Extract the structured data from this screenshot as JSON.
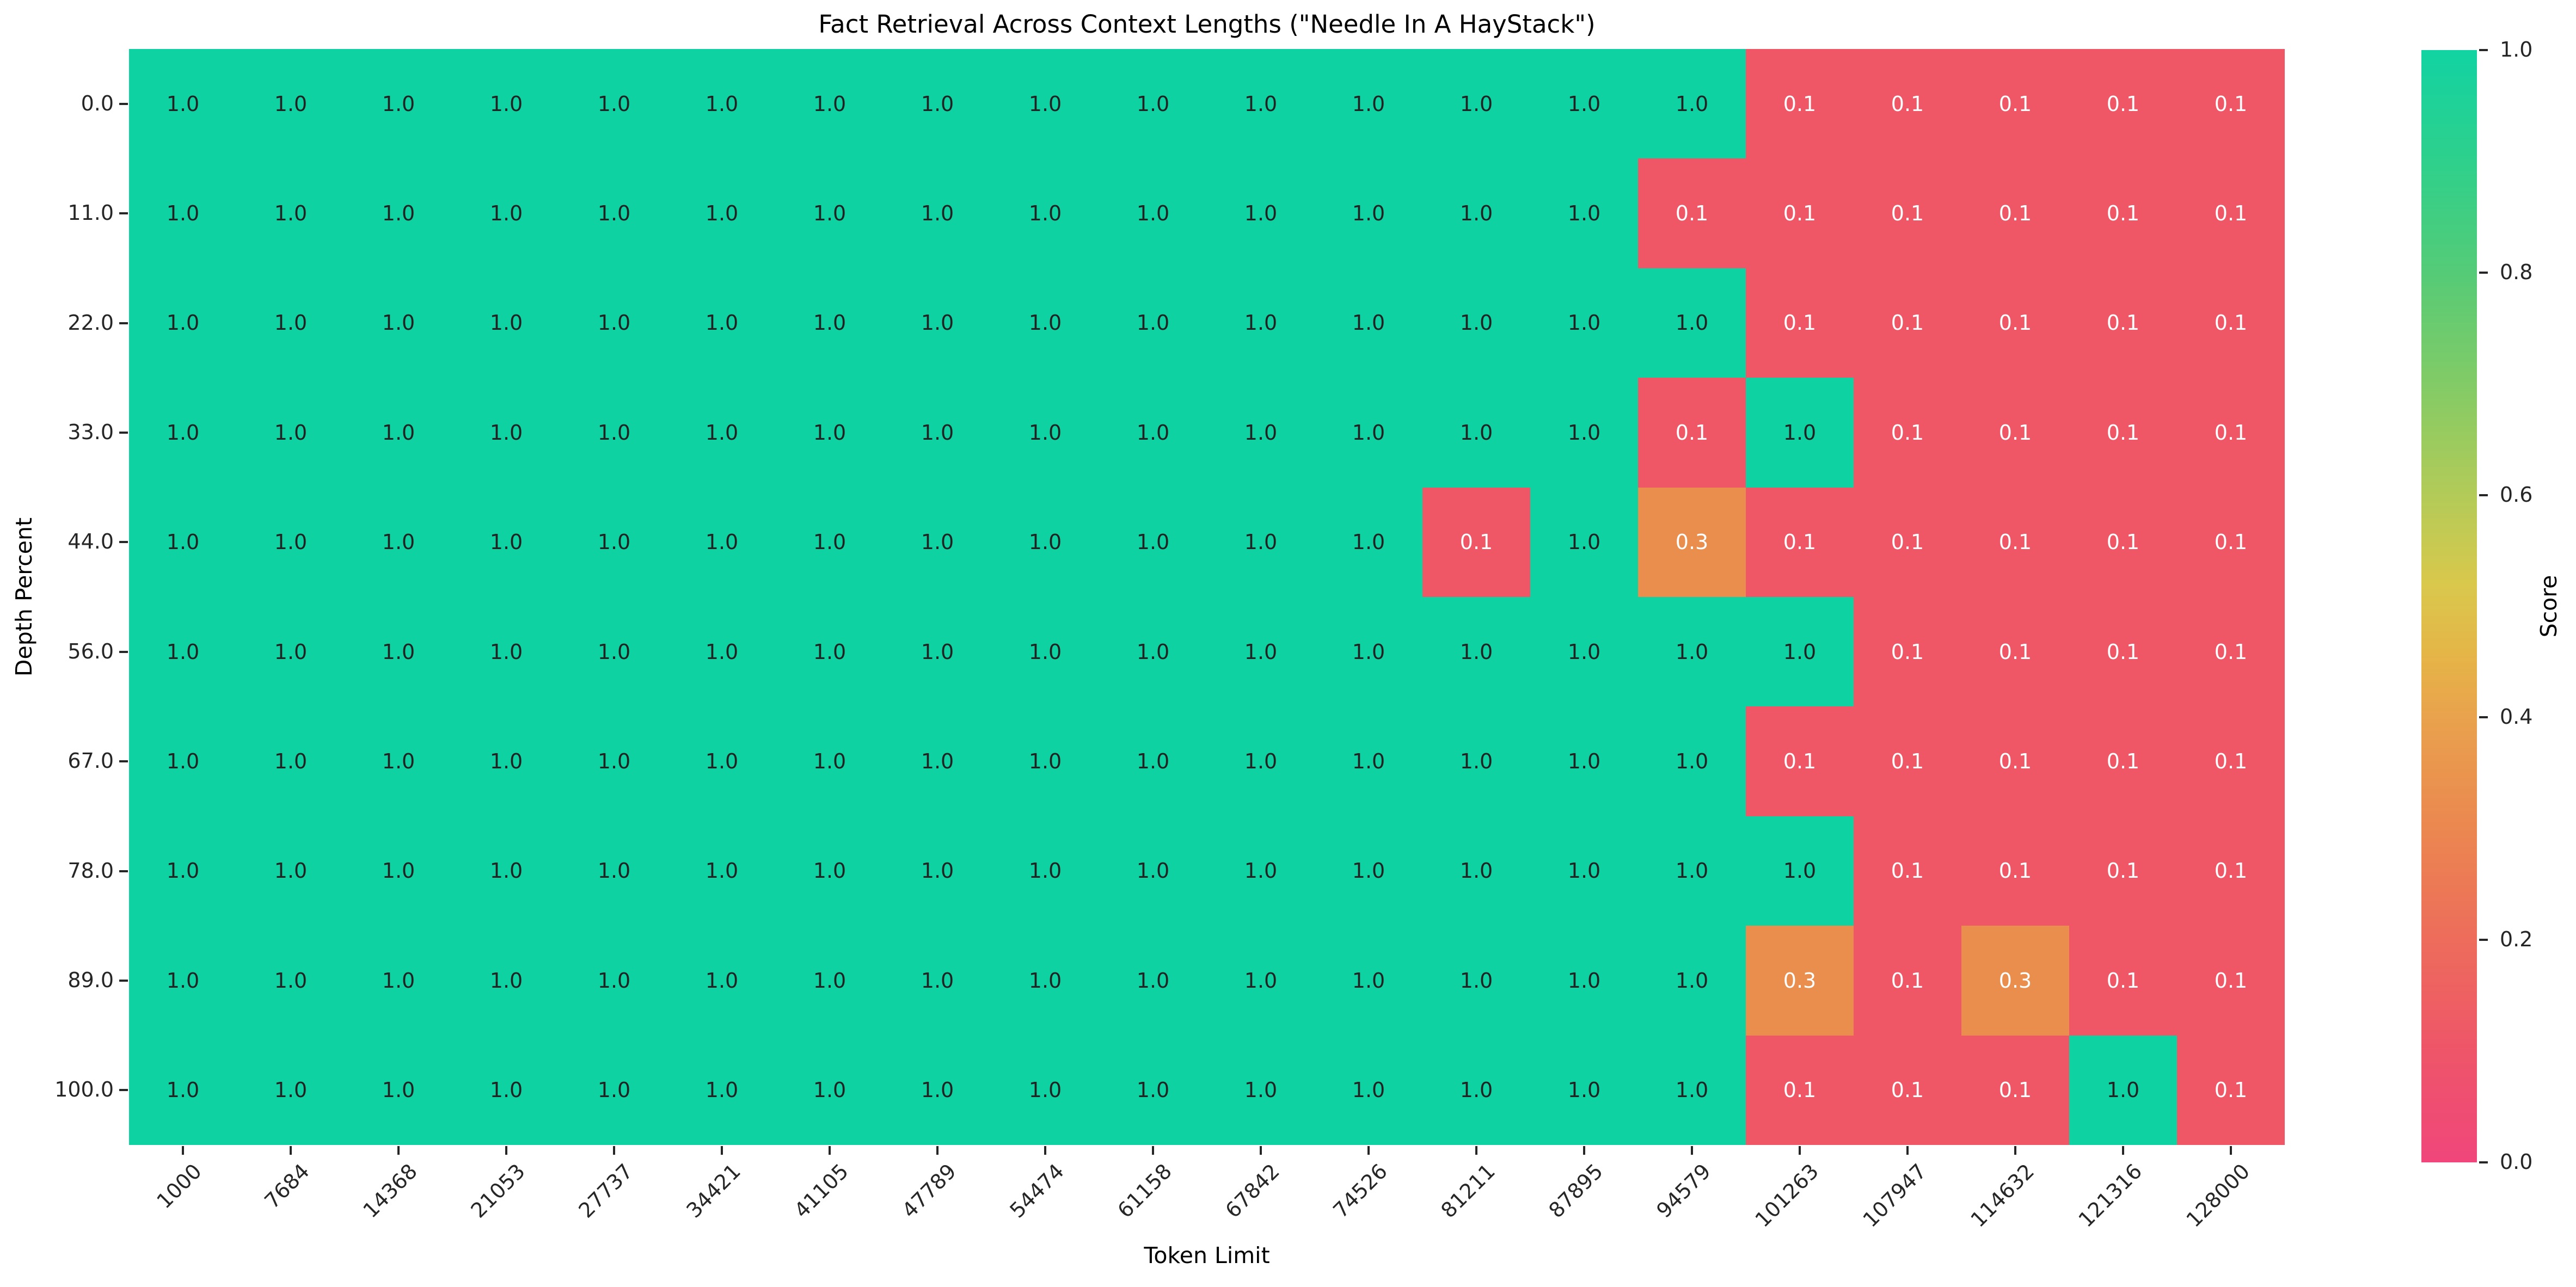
{
  "chart_data": {
    "type": "heatmap",
    "title": "Fact Retrieval Across Context Lengths (\"Needle In A HayStack\")",
    "xlabel": "Token Limit",
    "ylabel": "Depth Percent",
    "x_categories": [
      "1000",
      "7684",
      "14368",
      "21053",
      "27737",
      "34421",
      "41105",
      "47789",
      "54474",
      "61158",
      "67842",
      "74526",
      "81211",
      "87895",
      "94579",
      "101263",
      "107947",
      "114632",
      "121316",
      "128000"
    ],
    "y_categories": [
      "0.0",
      "11.0",
      "22.0",
      "33.0",
      "44.0",
      "56.0",
      "67.0",
      "78.0",
      "89.0",
      "100.0"
    ],
    "matrix": [
      [
        1.0,
        1.0,
        1.0,
        1.0,
        1.0,
        1.0,
        1.0,
        1.0,
        1.0,
        1.0,
        1.0,
        1.0,
        1.0,
        1.0,
        1.0,
        0.1,
        0.1,
        0.1,
        0.1,
        0.1
      ],
      [
        1.0,
        1.0,
        1.0,
        1.0,
        1.0,
        1.0,
        1.0,
        1.0,
        1.0,
        1.0,
        1.0,
        1.0,
        1.0,
        1.0,
        0.1,
        0.1,
        0.1,
        0.1,
        0.1,
        0.1
      ],
      [
        1.0,
        1.0,
        1.0,
        1.0,
        1.0,
        1.0,
        1.0,
        1.0,
        1.0,
        1.0,
        1.0,
        1.0,
        1.0,
        1.0,
        1.0,
        0.1,
        0.1,
        0.1,
        0.1,
        0.1
      ],
      [
        1.0,
        1.0,
        1.0,
        1.0,
        1.0,
        1.0,
        1.0,
        1.0,
        1.0,
        1.0,
        1.0,
        1.0,
        1.0,
        1.0,
        0.1,
        1.0,
        0.1,
        0.1,
        0.1,
        0.1
      ],
      [
        1.0,
        1.0,
        1.0,
        1.0,
        1.0,
        1.0,
        1.0,
        1.0,
        1.0,
        1.0,
        1.0,
        1.0,
        0.1,
        1.0,
        0.3,
        0.1,
        0.1,
        0.1,
        0.1,
        0.1
      ],
      [
        1.0,
        1.0,
        1.0,
        1.0,
        1.0,
        1.0,
        1.0,
        1.0,
        1.0,
        1.0,
        1.0,
        1.0,
        1.0,
        1.0,
        1.0,
        1.0,
        0.1,
        0.1,
        0.1,
        0.1
      ],
      [
        1.0,
        1.0,
        1.0,
        1.0,
        1.0,
        1.0,
        1.0,
        1.0,
        1.0,
        1.0,
        1.0,
        1.0,
        1.0,
        1.0,
        1.0,
        0.1,
        0.1,
        0.1,
        0.1,
        0.1
      ],
      [
        1.0,
        1.0,
        1.0,
        1.0,
        1.0,
        1.0,
        1.0,
        1.0,
        1.0,
        1.0,
        1.0,
        1.0,
        1.0,
        1.0,
        1.0,
        1.0,
        0.1,
        0.1,
        0.1,
        0.1
      ],
      [
        1.0,
        1.0,
        1.0,
        1.0,
        1.0,
        1.0,
        1.0,
        1.0,
        1.0,
        1.0,
        1.0,
        1.0,
        1.0,
        1.0,
        1.0,
        0.3,
        0.1,
        0.3,
        0.1,
        0.1
      ],
      [
        1.0,
        1.0,
        1.0,
        1.0,
        1.0,
        1.0,
        1.0,
        1.0,
        1.0,
        1.0,
        1.0,
        1.0,
        1.0,
        1.0,
        1.0,
        0.1,
        0.1,
        0.1,
        1.0,
        0.1
      ]
    ],
    "value_colors": {
      "1.0": "#0ed2a1",
      "0.3": "#ea8e4d",
      "0.1": "#ef5767"
    },
    "value_text_colors": {
      "1.0": "#222222",
      "0.3": "#ffffff",
      "0.1": "#ffffff"
    },
    "colorbar": {
      "label": "Score",
      "ticks": [
        "1.0",
        "0.8",
        "0.6",
        "0.4",
        "0.2",
        "0.0"
      ],
      "gradient_top_to_bottom": [
        {
          "pos": 0.0,
          "color": "#12d3a2"
        },
        {
          "pos": 0.1,
          "color": "#2ed08c"
        },
        {
          "pos": 0.2,
          "color": "#55cb77"
        },
        {
          "pos": 0.3,
          "color": "#82cb66"
        },
        {
          "pos": 0.4,
          "color": "#b3cb58"
        },
        {
          "pos": 0.48,
          "color": "#d9c84c"
        },
        {
          "pos": 0.55,
          "color": "#e6b348"
        },
        {
          "pos": 0.6,
          "color": "#e9a24d"
        },
        {
          "pos": 0.7,
          "color": "#eb8750"
        },
        {
          "pos": 0.8,
          "color": "#ed6c5b"
        },
        {
          "pos": 0.9,
          "color": "#ee5569"
        },
        {
          "pos": 1.0,
          "color": "#f0467b"
        }
      ],
      "range": [
        0.0,
        1.0
      ]
    },
    "grid": false,
    "legend_position": "right-colorbar"
  }
}
